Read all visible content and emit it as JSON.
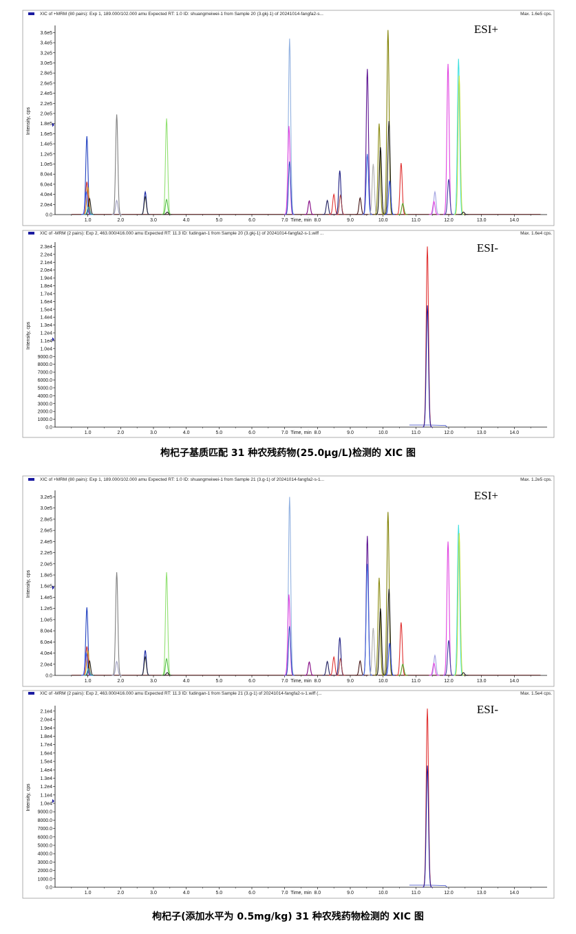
{
  "captions": [
    "枸杞子基质匹配 31 种农残药物(25.0μg/L)检测的 XIC 图",
    "枸杞子(添加水平为 0.5mg/kg) 31 种农残药物检测的 XIC 图"
  ],
  "chart_data": [
    {
      "type": "line",
      "title": "XIC of +MRM (80 pairs): Exp 1, 189.000/102.000 amu Expected RT: 1.0 ID: shuangmeiwei-1 from Sample 20 (3.gkj-1) of 20241014-fangfa2-s...",
      "max_label": "Max. 1.6e5 cps.",
      "mode_label": "ESI+",
      "xlabel": "Time, min",
      "ylabel": "Intensity, cps",
      "xlim": [
        0,
        15
      ],
      "ylim": [
        0,
        370000
      ],
      "x_ticks": [
        "1.0",
        "2.0",
        "3.0",
        "4.0",
        "5.0",
        "6.0",
        "7.0",
        "8.0",
        "9.0",
        "10.0",
        "11.0",
        "12.0",
        "13.0",
        "14.0"
      ],
      "y_ticks": [
        "0.0",
        "2.0e4",
        "4.0e4",
        "6.0e4",
        "8.0e4",
        "1.0e5",
        "1.2e5",
        "1.4e5",
        "1.6e5",
        "1.8e5",
        "2.0e5",
        "2.2e5",
        "2.4e5",
        "2.6e5",
        "2.8e5",
        "3.0e5",
        "3.2e5",
        "3.4e5",
        "3.6e5"
      ],
      "peaks": [
        {
          "rt": 0.97,
          "height": 155000,
          "color": "#1f3fbf"
        },
        {
          "rt": 0.97,
          "height": 65000,
          "color": "#d03030"
        },
        {
          "rt": 1.0,
          "height": 55000,
          "color": "#c89020"
        },
        {
          "rt": 0.95,
          "height": 45000,
          "color": "#3060ff"
        },
        {
          "rt": 1.05,
          "height": 32000,
          "color": "#202020"
        },
        {
          "rt": 1.02,
          "height": 15000,
          "color": "#20a0c0"
        },
        {
          "rt": 1.88,
          "height": 198000,
          "color": "#808080"
        },
        {
          "rt": 1.88,
          "height": 28000,
          "color": "#a0a0c0"
        },
        {
          "rt": 2.75,
          "height": 45000,
          "color": "#1020a0"
        },
        {
          "rt": 2.75,
          "height": 35000,
          "color": "#303030"
        },
        {
          "rt": 3.4,
          "height": 190000,
          "color": "#90e070"
        },
        {
          "rt": 3.4,
          "height": 30000,
          "color": "#50c040"
        },
        {
          "rt": 3.42,
          "height": 5000,
          "color": "#202020"
        },
        {
          "rt": 7.15,
          "height": 348000,
          "color": "#90b0e0"
        },
        {
          "rt": 7.13,
          "height": 175000,
          "color": "#e040e0"
        },
        {
          "rt": 7.15,
          "height": 105000,
          "color": "#3050c0"
        },
        {
          "rt": 7.75,
          "height": 27000,
          "color": "#800080"
        },
        {
          "rt": 8.3,
          "height": 28000,
          "color": "#202060"
        },
        {
          "rt": 8.5,
          "height": 40000,
          "color": "#e03030"
        },
        {
          "rt": 8.68,
          "height": 87000,
          "color": "#1a1a80"
        },
        {
          "rt": 8.7,
          "height": 38000,
          "color": "#a04040"
        },
        {
          "rt": 9.3,
          "height": 33000,
          "color": "#401010"
        },
        {
          "rt": 9.52,
          "height": 288000,
          "color": "#5a1090"
        },
        {
          "rt": 9.52,
          "height": 120000,
          "color": "#4070e0"
        },
        {
          "rt": 9.7,
          "height": 100000,
          "color": "#b0b0b0"
        },
        {
          "rt": 9.88,
          "height": 180000,
          "color": "#8a8a10"
        },
        {
          "rt": 9.92,
          "height": 133000,
          "color": "#101010"
        },
        {
          "rt": 10.15,
          "height": 365000,
          "color": "#808000"
        },
        {
          "rt": 10.18,
          "height": 185000,
          "color": "#202020"
        },
        {
          "rt": 10.2,
          "height": 67000,
          "color": "#2040e0"
        },
        {
          "rt": 10.55,
          "height": 102000,
          "color": "#e03030"
        },
        {
          "rt": 10.6,
          "height": 22000,
          "color": "#50a020"
        },
        {
          "rt": 11.58,
          "height": 45000,
          "color": "#a0a0e0"
        },
        {
          "rt": 11.55,
          "height": 26000,
          "color": "#e040e0"
        },
        {
          "rt": 11.98,
          "height": 298000,
          "color": "#e040e0"
        },
        {
          "rt": 12.0,
          "height": 70000,
          "color": "#4040a0"
        },
        {
          "rt": 12.3,
          "height": 308000,
          "color": "#40e0e0"
        },
        {
          "rt": 12.32,
          "height": 275000,
          "color": "#c0e040"
        },
        {
          "rt": 12.45,
          "height": 5000,
          "color": "#202020"
        }
      ]
    },
    {
      "type": "line",
      "title": "XIC of -MRM (2 pairs): Exp 2, 463.000/416.000 amu Expected RT: 11.3 ID: fudingan-1 from Sample 20 (3.gkj-1) of 20241014-fangfa2-s-1.wiff ...",
      "max_label": "Max. 1.6e4 cps.",
      "mode_label": "ESI-",
      "xlabel": "Time, min",
      "ylabel": "Intensity, cps",
      "xlim": [
        0,
        15
      ],
      "ylim": [
        0,
        23300
      ],
      "x_ticks": [
        "1.0",
        "2.0",
        "3.0",
        "4.0",
        "5.0",
        "6.0",
        "7.0",
        "8.0",
        "9.0",
        "10.0",
        "11.0",
        "12.0",
        "13.0",
        "14.0"
      ],
      "y_ticks": [
        "0.0",
        "1000.0",
        "2000.0",
        "3000.0",
        "4000.0",
        "5000.0",
        "6000.0",
        "7000.0",
        "8000.0",
        "9000.0",
        "1.0e4",
        "1.1e4",
        "1.2e4",
        "1.3e4",
        "1.4e4",
        "1.5e4",
        "1.6e4",
        "1.7e4",
        "1.8e4",
        "1.9e4",
        "2.0e4",
        "2.1e4",
        "2.2e4",
        "2.3e4"
      ],
      "peaks": [
        {
          "rt": 11.35,
          "height": 23000,
          "color": "#e03030"
        },
        {
          "rt": 11.35,
          "height": 15500,
          "color": "#2020a0"
        }
      ]
    },
    {
      "type": "line",
      "title": "XIC of +MRM (80 pairs): Exp 1, 189.000/102.000 amu Expected RT: 1.0 ID: shuangmeiwei-1 from Sample 21 (3.g-1) of 20241014-fangfa2-s-1...",
      "max_label": "Max. 1.2e5 cps.",
      "mode_label": "ESI+",
      "xlabel": "Time, min",
      "ylabel": "Intensity, cps",
      "xlim": [
        0,
        15
      ],
      "ylim": [
        0,
        328000
      ],
      "x_ticks": [
        "1.0",
        "2.0",
        "3.0",
        "4.0",
        "5.0",
        "6.0",
        "7.0",
        "8.0",
        "9.0",
        "10.0",
        "11.0",
        "12.0",
        "13.0",
        "14.0"
      ],
      "y_ticks": [
        "0.0",
        "2.0e4",
        "4.0e4",
        "6.0e4",
        "8.0e4",
        "1.0e5",
        "1.2e5",
        "1.4e5",
        "1.6e5",
        "1.8e5",
        "2.0e5",
        "2.2e5",
        "2.4e5",
        "2.6e5",
        "2.8e5",
        "3.0e5",
        "3.2e5"
      ],
      "peaks": [
        {
          "rt": 0.97,
          "height": 122000,
          "color": "#1f3fbf"
        },
        {
          "rt": 0.97,
          "height": 52000,
          "color": "#d03030"
        },
        {
          "rt": 1.0,
          "height": 45000,
          "color": "#c89020"
        },
        {
          "rt": 0.95,
          "height": 40000,
          "color": "#3060ff"
        },
        {
          "rt": 1.05,
          "height": 26000,
          "color": "#202020"
        },
        {
          "rt": 1.02,
          "height": 12000,
          "color": "#20a0c0"
        },
        {
          "rt": 1.88,
          "height": 185000,
          "color": "#808080"
        },
        {
          "rt": 1.88,
          "height": 25000,
          "color": "#a0a0c0"
        },
        {
          "rt": 2.75,
          "height": 45000,
          "color": "#1020a0"
        },
        {
          "rt": 2.75,
          "height": 33000,
          "color": "#303030"
        },
        {
          "rt": 3.4,
          "height": 185000,
          "color": "#90e070"
        },
        {
          "rt": 3.4,
          "height": 30000,
          "color": "#50c040"
        },
        {
          "rt": 3.42,
          "height": 5000,
          "color": "#202020"
        },
        {
          "rt": 7.15,
          "height": 320000,
          "color": "#90b0e0"
        },
        {
          "rt": 7.13,
          "height": 145000,
          "color": "#e040e0"
        },
        {
          "rt": 7.15,
          "height": 88000,
          "color": "#3050c0"
        },
        {
          "rt": 7.75,
          "height": 24000,
          "color": "#800080"
        },
        {
          "rt": 8.3,
          "height": 25000,
          "color": "#202060"
        },
        {
          "rt": 8.5,
          "height": 33000,
          "color": "#e03030"
        },
        {
          "rt": 8.68,
          "height": 68000,
          "color": "#1a1a80"
        },
        {
          "rt": 8.7,
          "height": 30000,
          "color": "#a04040"
        },
        {
          "rt": 9.3,
          "height": 26000,
          "color": "#401010"
        },
        {
          "rt": 9.52,
          "height": 250000,
          "color": "#5a1090"
        },
        {
          "rt": 9.52,
          "height": 200000,
          "color": "#4070e0"
        },
        {
          "rt": 9.7,
          "height": 85000,
          "color": "#b0b0b0"
        },
        {
          "rt": 9.88,
          "height": 175000,
          "color": "#8a8a10"
        },
        {
          "rt": 9.92,
          "height": 120000,
          "color": "#101010"
        },
        {
          "rt": 10.15,
          "height": 293000,
          "color": "#808000"
        },
        {
          "rt": 10.18,
          "height": 155000,
          "color": "#202020"
        },
        {
          "rt": 10.2,
          "height": 58000,
          "color": "#2040e0"
        },
        {
          "rt": 10.55,
          "height": 95000,
          "color": "#e03030"
        },
        {
          "rt": 10.6,
          "height": 20000,
          "color": "#50a020"
        },
        {
          "rt": 11.58,
          "height": 36000,
          "color": "#a0a0e0"
        },
        {
          "rt": 11.55,
          "height": 22000,
          "color": "#e040e0"
        },
        {
          "rt": 11.98,
          "height": 240000,
          "color": "#e040e0"
        },
        {
          "rt": 12.0,
          "height": 63000,
          "color": "#4040a0"
        },
        {
          "rt": 12.3,
          "height": 270000,
          "color": "#40e0e0"
        },
        {
          "rt": 12.32,
          "height": 255000,
          "color": "#c0e040"
        },
        {
          "rt": 12.45,
          "height": 5000,
          "color": "#202020"
        }
      ]
    },
    {
      "type": "line",
      "title": "XIC of -MRM (2 pairs): Exp 2, 463.000/416.000 amu Expected RT: 11.3 ID: fudingan-1 from Sample 21 (3.g-1) of 20241014-fangfa2-s-1.wiff (...",
      "max_label": "Max. 1.5e4 cps.",
      "mode_label": "ESI-",
      "xlabel": "Time, min",
      "ylabel": "Intensity, cps",
      "xlim": [
        0,
        15
      ],
      "ylim": [
        0,
        21400
      ],
      "x_ticks": [
        "1.0",
        "2.0",
        "3.0",
        "4.0",
        "5.0",
        "6.0",
        "7.0",
        "8.0",
        "9.0",
        "10.0",
        "11.0",
        "12.0",
        "13.0",
        "14.0"
      ],
      "y_ticks": [
        "0.0",
        "1000.0",
        "2000.0",
        "3000.0",
        "4000.0",
        "5000.0",
        "6000.0",
        "7000.0",
        "8000.0",
        "9000.0",
        "1.0e4",
        "1.1e4",
        "1.2e4",
        "1.3e4",
        "1.4e4",
        "1.5e4",
        "1.6e4",
        "1.7e4",
        "1.8e4",
        "1.9e4",
        "2.0e4",
        "2.1e4"
      ],
      "peaks": [
        {
          "rt": 11.35,
          "height": 21300,
          "color": "#e03030"
        },
        {
          "rt": 11.35,
          "height": 14500,
          "color": "#2020a0"
        }
      ]
    }
  ]
}
